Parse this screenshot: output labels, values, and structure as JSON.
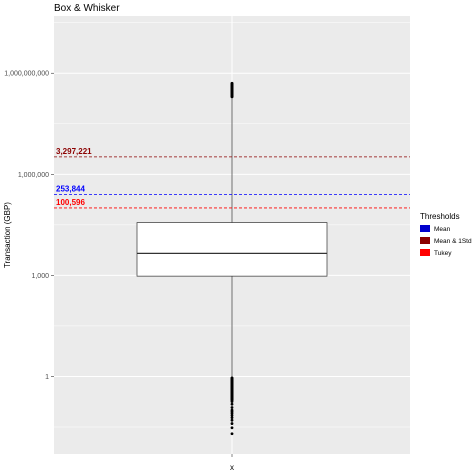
{
  "chart_data": {
    "type": "box",
    "title": "Box & Whisker",
    "xlabel": "x",
    "ylabel": "Transaction (GBP)",
    "y_scale": "log10",
    "ylim": [
      0.005,
      50000000000
    ],
    "y_ticks": [
      {
        "value": 1,
        "label": "1"
      },
      {
        "value": 1000,
        "label": "1,000"
      },
      {
        "value": 1000000,
        "label": "1,000,000"
      },
      {
        "value": 1000000000,
        "label": "1,000,000,000"
      }
    ],
    "x_categories": [
      ""
    ],
    "grid": true,
    "box": {
      "q1": 950,
      "median": 4500,
      "q3": 37000,
      "whisker_low": 0.2,
      "whisker_high": 200000000,
      "outliers_high_range": [
        200000000,
        500000000
      ],
      "outliers_low": [
        0.02,
        0.03,
        0.04,
        0.05,
        0.06,
        0.07,
        0.08,
        0.09,
        0.1,
        0.12,
        0.15,
        0.18
      ]
    },
    "thresholds": [
      {
        "name": "Mean & 1Std",
        "label": "3,297,221",
        "value": 3297221,
        "color": "#8b0000"
      },
      {
        "name": "Mean",
        "label": "253,844",
        "value": 253844,
        "color": "#0000ff"
      },
      {
        "name": "Tukey",
        "label": "100,596",
        "value": 100596,
        "color": "#ff0000"
      }
    ],
    "legend": {
      "title": "Thresholds",
      "position": "right",
      "items": [
        {
          "label": "Mean",
          "color": "#0000cd"
        },
        {
          "label": "Mean & 1Std",
          "color": "#8b0000"
        },
        {
          "label": "Tukey",
          "color": "#ff0000"
        }
      ]
    }
  }
}
